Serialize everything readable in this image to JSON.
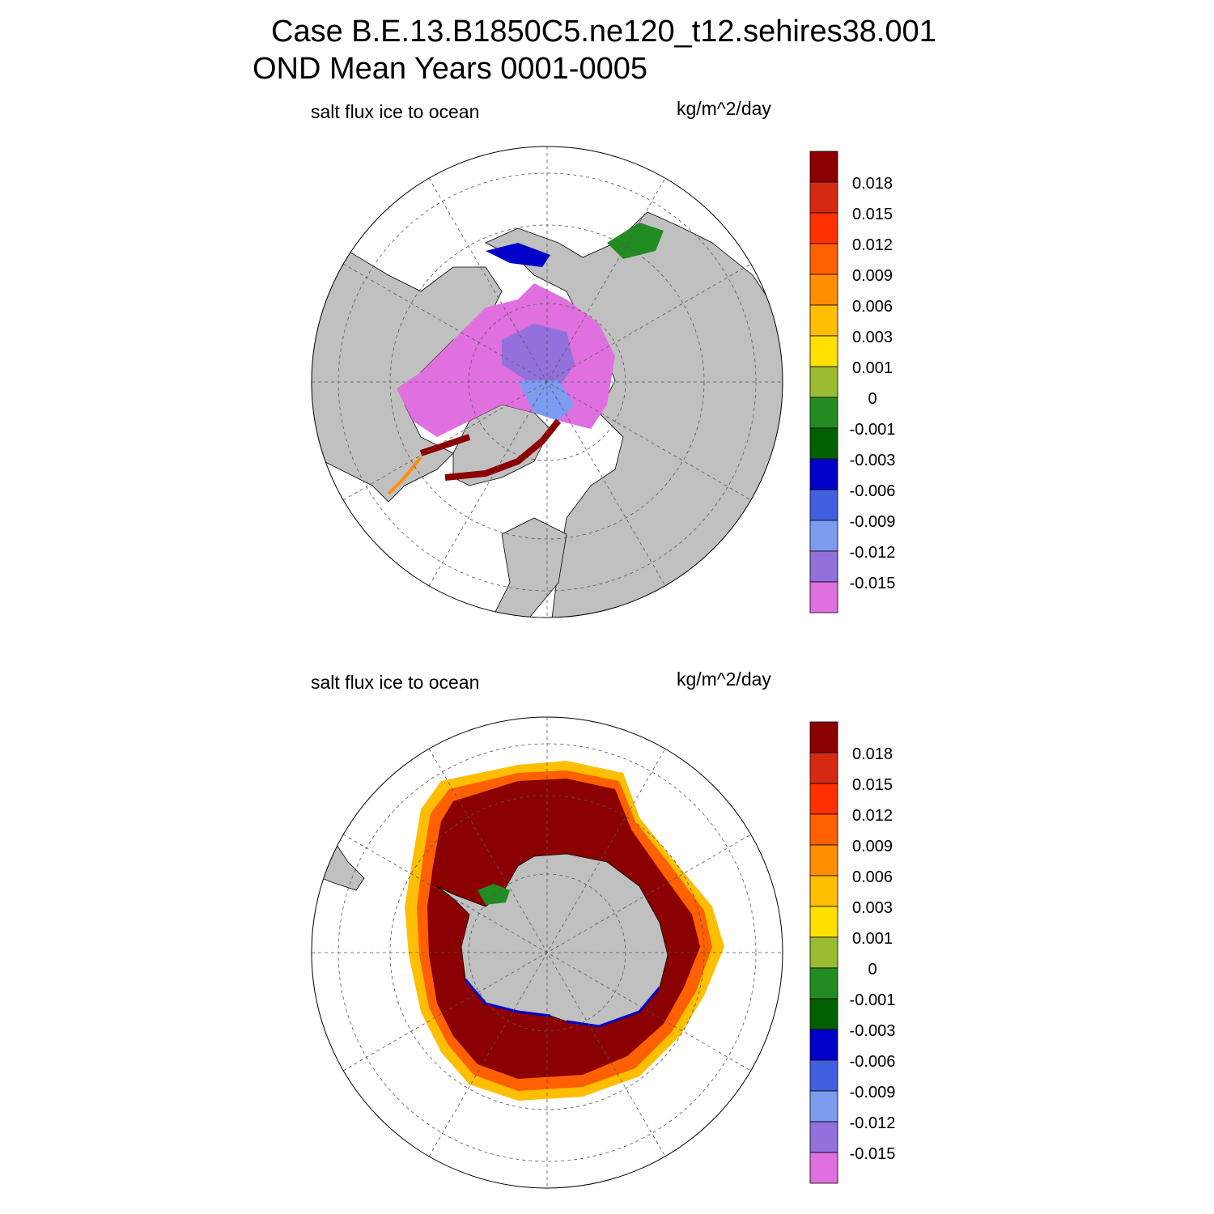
{
  "figure": {
    "title_line1": "Case B.E.13.B1850C5.ne120_t12.sehires38.001",
    "title_line2": "OND Mean   Years 0001-0005"
  },
  "panels": [
    {
      "left_label": "salt flux ice to ocean",
      "right_label": "kg/m^2/day",
      "hemisphere": "north"
    },
    {
      "left_label": "salt flux ice to ocean",
      "right_label": "kg/m^2/day",
      "hemisphere": "south"
    }
  ],
  "colorbar": {
    "labels": [
      "0.018",
      "0.015",
      "0.012",
      "0.009",
      "0.006",
      "0.003",
      "0.001",
      "0",
      "-0.001",
      "-0.003",
      "-0.006",
      "-0.009",
      "-0.012",
      "-0.015"
    ],
    "colors": [
      "#8b0000",
      "#d42a12",
      "#ff3000",
      "#ff6000",
      "#ff8f00",
      "#ffbe00",
      "#ffe000",
      "#9abb32",
      "#228b22",
      "#006000",
      "#0000c8",
      "#4060e0",
      "#7c9cf0",
      "#9370db",
      "#e070e0"
    ]
  },
  "map_colors": {
    "land": "#c0c0c0",
    "ocean": "#ffffff",
    "grid": "#555555"
  }
}
